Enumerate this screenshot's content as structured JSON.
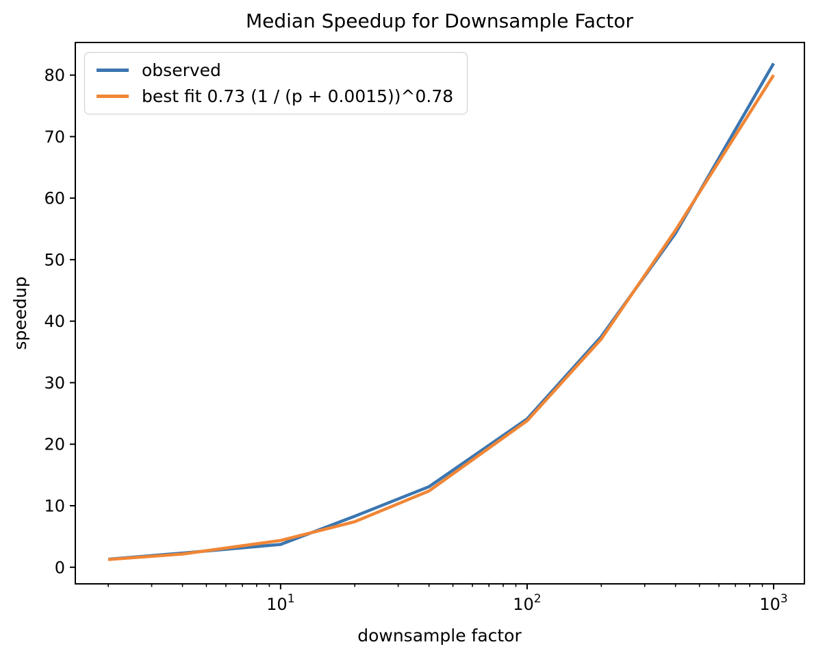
{
  "chart_data": {
    "type": "line",
    "title": "Median Speedup for Downsample Factor",
    "xlabel": "downsample factor",
    "ylabel": "speedup",
    "x_scale": "log",
    "y_scale": "linear",
    "xlim": [
      1.47,
      1333
    ],
    "ylim": [
      -2.7,
      85.3
    ],
    "grid": false,
    "legend_position": "upper left",
    "x": [
      2,
      4,
      10,
      20,
      40,
      100,
      200,
      400,
      1000
    ],
    "series": [
      {
        "name": "observed",
        "color": "#3b76b0",
        "values": [
          1.3,
          2.3,
          3.7,
          8.3,
          13.1,
          24.1,
          37.5,
          54.3,
          81.9
        ]
      },
      {
        "name": "best fit 0.73 (1 / (p + 0.0015))^0.78",
        "color": "#f08636",
        "values": [
          1.25,
          2.15,
          4.35,
          7.4,
          12.4,
          23.8,
          37.1,
          54.8,
          80.0
        ]
      }
    ],
    "y_ticks": [
      0,
      10,
      20,
      30,
      40,
      50,
      60,
      70,
      80
    ],
    "x_major_ticks": [
      {
        "value": 10,
        "base": "10",
        "exponent": "1"
      },
      {
        "value": 100,
        "base": "10",
        "exponent": "2"
      },
      {
        "value": 1000,
        "base": "10",
        "exponent": "3"
      }
    ]
  },
  "style": {
    "spine_color": "#000000",
    "tick_color": "#000000",
    "legend_border_color": "#cccccc",
    "background": "#ffffff",
    "line_width": 4.5
  }
}
